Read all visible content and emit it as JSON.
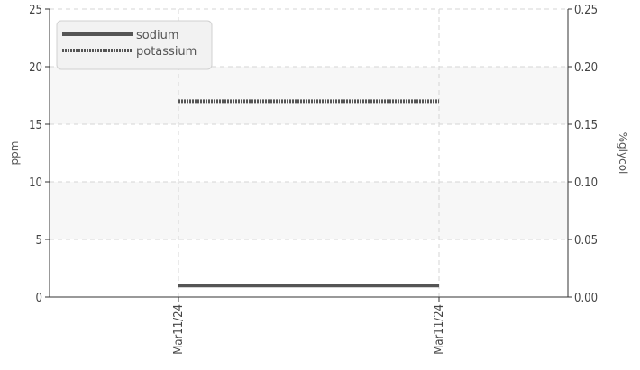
{
  "chart_data": {
    "type": "line",
    "title": "",
    "x": [
      "Mar11/24",
      "Mar11/24"
    ],
    "ylabel": "ppm",
    "y2label": "%glycol",
    "ylim": [
      0,
      25
    ],
    "y2lim": [
      0,
      0.25
    ],
    "yticks": [
      "0",
      "5",
      "10",
      "15",
      "20",
      "25"
    ],
    "y2ticks": [
      "0.00",
      "0.05",
      "0.10",
      "0.15",
      "0.20",
      "0.25"
    ],
    "grid": true,
    "legend": "top-left",
    "series": [
      {
        "name": "sodium",
        "values": [
          1,
          1
        ],
        "color": "#555555",
        "style": "solid"
      },
      {
        "name": "potassium",
        "values": [
          17,
          17
        ],
        "color": "#555555",
        "style": "dotted"
      }
    ]
  }
}
